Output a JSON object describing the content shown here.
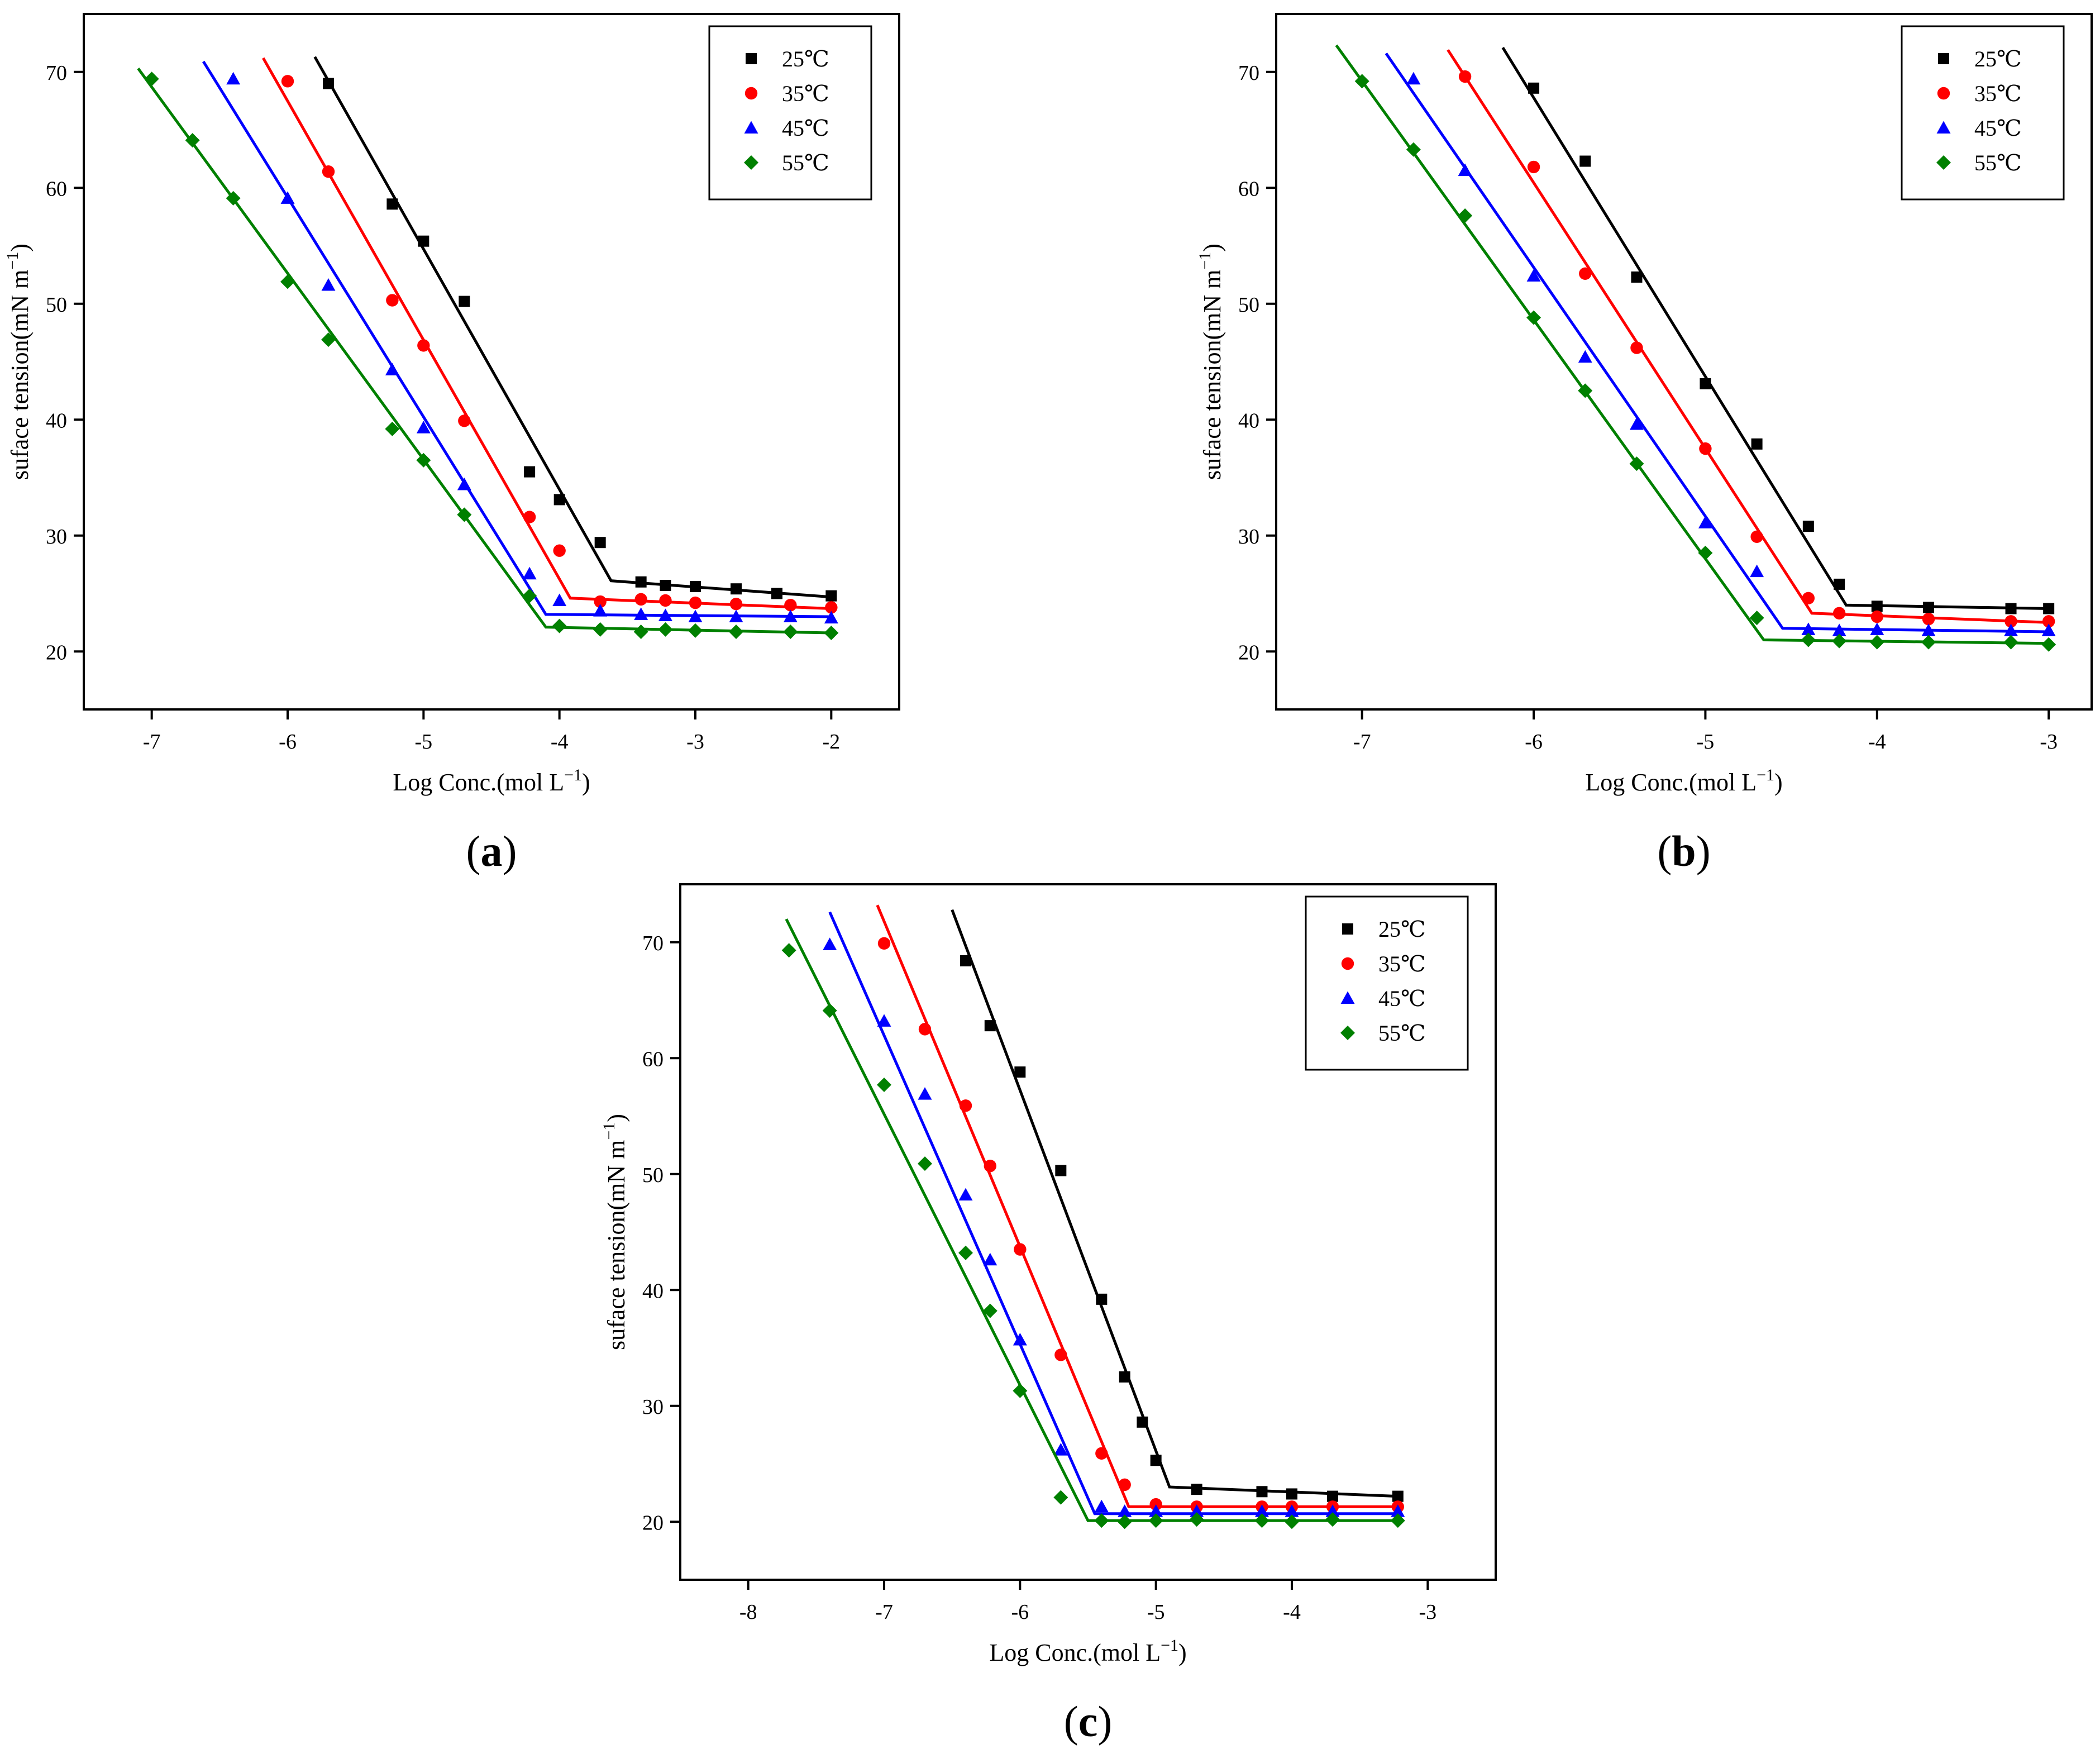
{
  "colors": {
    "25": "#000000",
    "35": "#ff0000",
    "45": "#0000ff",
    "55": "#008000"
  },
  "chart_data": [
    {
      "id": "a",
      "panel_label": "a",
      "type": "scatter",
      "xlabel": "Log Conc.(mol L",
      "xlabel_sup": "−1",
      "xlabel_close": ")",
      "ylabel": "suface tension(mN m",
      "ylabel_sup": "−1",
      "ylabel_close": ")",
      "xlim": [
        -7.5,
        -1.5
      ],
      "ylim": [
        15,
        75
      ],
      "xticks": [
        -7,
        -6,
        -5,
        -4,
        -3,
        -2
      ],
      "yticks": [
        20,
        30,
        40,
        50,
        60,
        70
      ],
      "xtick_labels": [
        "-7",
        "-6",
        "-5",
        "-4",
        "-3",
        "-2"
      ],
      "ytick_labels": [
        "20",
        "30",
        "40",
        "50",
        "60",
        "70"
      ],
      "legend_position": "top-right",
      "series": [
        {
          "name": "25℃",
          "color_key": "25",
          "marker": "square",
          "x": [
            -5.7,
            -5.23,
            -5.0,
            -4.7,
            -4.22,
            -4.0,
            -3.7,
            -3.4,
            -3.22,
            -3.0,
            -2.7,
            -2.4,
            -2.0
          ],
          "y": [
            69.0,
            58.6,
            55.4,
            50.2,
            35.5,
            33.1,
            29.4,
            26.0,
            25.7,
            25.6,
            25.4,
            25.0,
            24.8
          ],
          "fit": {
            "x": [
              -5.8,
              -3.62,
              -2.0
            ],
            "y": [
              71.3,
              26.1,
              24.7
            ]
          }
        },
        {
          "name": "35℃",
          "color_key": "35",
          "marker": "circle",
          "x": [
            -6.0,
            -5.7,
            -5.23,
            -5.0,
            -4.7,
            -4.22,
            -4.0,
            -3.7,
            -3.4,
            -3.22,
            -3.0,
            -2.7,
            -2.3,
            -2.0
          ],
          "y": [
            69.2,
            61.4,
            50.3,
            46.4,
            39.9,
            31.6,
            28.7,
            24.3,
            24.5,
            24.4,
            24.2,
            24.1,
            24.0,
            23.8
          ],
          "fit": {
            "x": [
              -6.18,
              -3.92,
              -2.0
            ],
            "y": [
              71.2,
              24.6,
              23.7
            ]
          }
        },
        {
          "name": "45℃",
          "color_key": "45",
          "marker": "triangle",
          "x": [
            -6.4,
            -6.0,
            -5.7,
            -5.23,
            -5.0,
            -4.7,
            -4.22,
            -4.0,
            -3.7,
            -3.4,
            -3.22,
            -3.0,
            -2.7,
            -2.3,
            -2.0
          ],
          "y": [
            69.4,
            59.1,
            51.6,
            44.3,
            39.3,
            34.4,
            26.7,
            24.4,
            23.5,
            23.2,
            23.1,
            23.0,
            23.0,
            23.0,
            22.9
          ],
          "fit": {
            "x": [
              -6.62,
              -4.1,
              -2.0
            ],
            "y": [
              70.9,
              23.2,
              23.0
            ]
          }
        },
        {
          "name": "55℃",
          "color_key": "55",
          "marker": "diamond",
          "x": [
            -7.0,
            -6.7,
            -6.4,
            -6.0,
            -5.7,
            -5.23,
            -5.0,
            -4.7,
            -4.22,
            -4.0,
            -3.7,
            -3.4,
            -3.22,
            -3.0,
            -2.7,
            -2.3,
            -2.0
          ],
          "y": [
            69.4,
            64.1,
            59.1,
            51.9,
            46.9,
            39.2,
            36.5,
            31.8,
            24.8,
            22.2,
            21.9,
            21.7,
            21.9,
            21.8,
            21.7,
            21.7,
            21.6
          ],
          "fit": {
            "x": [
              -7.1,
              -4.1,
              -2.0
            ],
            "y": [
              70.3,
              22.1,
              21.6
            ]
          }
        }
      ]
    },
    {
      "id": "b",
      "panel_label": "b",
      "type": "scatter",
      "xlabel": "Log Conc.(mol L",
      "xlabel_sup": "−1",
      "xlabel_close": ")",
      "ylabel": "suface tension(mN m",
      "ylabel_sup": "−1",
      "ylabel_close": ")",
      "xlim": [
        -7.5,
        -2.75
      ],
      "ylim": [
        15,
        75
      ],
      "xticks": [
        -7,
        -6,
        -5,
        -4,
        -3
      ],
      "yticks": [
        20,
        30,
        40,
        50,
        60,
        70
      ],
      "xtick_labels": [
        "-7",
        "-6",
        "-5",
        "-4",
        "-3"
      ],
      "ytick_labels": [
        "20",
        "30",
        "40",
        "50",
        "60",
        "70"
      ],
      "legend_position": "top-right",
      "series": [
        {
          "name": "25℃",
          "color_key": "25",
          "marker": "square",
          "x": [
            -6.0,
            -5.7,
            -5.4,
            -5.0,
            -4.7,
            -4.4,
            -4.22,
            -4.0,
            -3.7,
            -3.22,
            -3.0
          ],
          "y": [
            68.6,
            62.3,
            52.3,
            43.1,
            37.9,
            30.8,
            25.8,
            23.9,
            23.8,
            23.7,
            23.7
          ],
          "fit": {
            "x": [
              -6.18,
              -4.18,
              -3.0
            ],
            "y": [
              72.1,
              24.0,
              23.7
            ]
          }
        },
        {
          "name": "35℃",
          "color_key": "35",
          "marker": "circle",
          "x": [
            -6.4,
            -6.0,
            -5.7,
            -5.4,
            -5.0,
            -4.7,
            -4.4,
            -4.22,
            -4.0,
            -3.7,
            -3.22,
            -3.0
          ],
          "y": [
            69.6,
            61.8,
            52.6,
            46.2,
            37.5,
            29.9,
            24.6,
            23.3,
            23.0,
            22.8,
            22.6,
            22.6
          ],
          "fit": {
            "x": [
              -6.5,
              -4.38,
              -3.0
            ],
            "y": [
              71.9,
              23.3,
              22.5
            ]
          }
        },
        {
          "name": "45℃",
          "color_key": "45",
          "marker": "triangle",
          "x": [
            -6.7,
            -6.4,
            -6.0,
            -5.7,
            -5.4,
            -5.0,
            -4.7,
            -4.4,
            -4.22,
            -4.0,
            -3.7,
            -3.22,
            -3.0
          ],
          "y": [
            69.4,
            61.5,
            52.4,
            45.4,
            39.6,
            31.1,
            26.9,
            21.9,
            21.8,
            21.9,
            21.8,
            21.8,
            21.8
          ],
          "fit": {
            "x": [
              -6.86,
              -4.55,
              -3.0
            ],
            "y": [
              71.6,
              22.0,
              21.7
            ]
          }
        },
        {
          "name": "55℃",
          "color_key": "55",
          "marker": "diamond",
          "x": [
            -7.0,
            -6.7,
            -6.4,
            -6.0,
            -5.7,
            -5.4,
            -5.0,
            -4.7,
            -4.4,
            -4.22,
            -4.0,
            -3.7,
            -3.22,
            -3.0
          ],
          "y": [
            69.2,
            63.3,
            57.6,
            48.8,
            42.5,
            36.2,
            28.5,
            22.9,
            21.0,
            20.9,
            20.8,
            20.8,
            20.8,
            20.6
          ],
          "fit": {
            "x": [
              -7.15,
              -4.66,
              -3.0
            ],
            "y": [
              72.3,
              21.0,
              20.7
            ]
          }
        }
      ]
    },
    {
      "id": "c",
      "panel_label": "c",
      "type": "scatter",
      "xlabel": "Log Conc.(mol L",
      "xlabel_sup": "−1",
      "xlabel_close": ")",
      "ylabel": "suface tension(mN m",
      "ylabel_sup": "−1",
      "ylabel_close": ")",
      "xlim": [
        -8.5,
        -2.5
      ],
      "ylim": [
        15,
        75
      ],
      "xticks": [
        -8,
        -7,
        -6,
        -5,
        -4,
        -3
      ],
      "yticks": [
        20,
        30,
        40,
        50,
        60,
        70
      ],
      "xtick_labels": [
        "-8",
        "-7",
        "-6",
        "-5",
        "-4",
        "-3"
      ],
      "ytick_labels": [
        "20",
        "30",
        "40",
        "50",
        "60",
        "70"
      ],
      "legend_position": "top-right",
      "series": [
        {
          "name": "25℃",
          "color_key": "25",
          "marker": "square",
          "x": [
            -6.4,
            -6.22,
            -6.0,
            -5.7,
            -5.4,
            -5.23,
            -5.1,
            -5.0,
            -4.7,
            -4.22,
            -4.0,
            -3.7,
            -3.22
          ],
          "y": [
            68.4,
            62.8,
            58.8,
            50.3,
            39.2,
            32.5,
            28.6,
            25.3,
            22.8,
            22.6,
            22.4,
            22.2,
            22.2
          ],
          "fit": {
            "x": [
              -6.5,
              -4.9,
              -3.22
            ],
            "y": [
              72.8,
              23.0,
              22.2
            ]
          }
        },
        {
          "name": "35℃",
          "color_key": "35",
          "marker": "circle",
          "x": [
            -7.0,
            -6.7,
            -6.4,
            -6.22,
            -6.0,
            -5.7,
            -5.4,
            -5.23,
            -5.0,
            -4.7,
            -4.22,
            -4.0,
            -3.7,
            -3.22
          ],
          "y": [
            69.9,
            62.5,
            55.9,
            50.7,
            43.5,
            34.4,
            25.9,
            23.2,
            21.5,
            21.3,
            21.3,
            21.3,
            21.3,
            21.3
          ],
          "fit": {
            "x": [
              -7.05,
              -5.2,
              -3.22
            ],
            "y": [
              73.2,
              21.3,
              21.3
            ]
          }
        },
        {
          "name": "45℃",
          "color_key": "45",
          "marker": "triangle",
          "x": [
            -7.4,
            -7.0,
            -6.7,
            -6.4,
            -6.22,
            -6.0,
            -5.7,
            -5.4,
            -5.23,
            -5.0,
            -4.7,
            -4.22,
            -4.0,
            -3.7,
            -3.22
          ],
          "y": [
            69.8,
            63.2,
            56.9,
            48.2,
            42.6,
            35.7,
            26.2,
            21.3,
            20.9,
            20.9,
            20.9,
            20.9,
            20.9,
            20.9,
            20.9
          ],
          "fit": {
            "x": [
              -7.4,
              -5.45,
              -3.22
            ],
            "y": [
              72.6,
              20.7,
              20.7
            ]
          }
        },
        {
          "name": "55℃",
          "color_key": "55",
          "marker": "diamond",
          "x": [
            -7.7,
            -7.4,
            -7.0,
            -6.7,
            -6.4,
            -6.22,
            -6.0,
            -5.7,
            -5.4,
            -5.23,
            -5.0,
            -4.7,
            -4.22,
            -4.0,
            -3.7,
            -3.22
          ],
          "y": [
            69.3,
            64.1,
            57.7,
            50.9,
            43.2,
            38.2,
            31.3,
            22.1,
            20.1,
            20.0,
            20.1,
            20.2,
            20.1,
            20.0,
            20.2,
            20.1
          ],
          "fit": {
            "x": [
              -7.72,
              -5.5,
              -3.22
            ],
            "y": [
              72.0,
              20.1,
              20.1
            ]
          }
        }
      ]
    }
  ]
}
